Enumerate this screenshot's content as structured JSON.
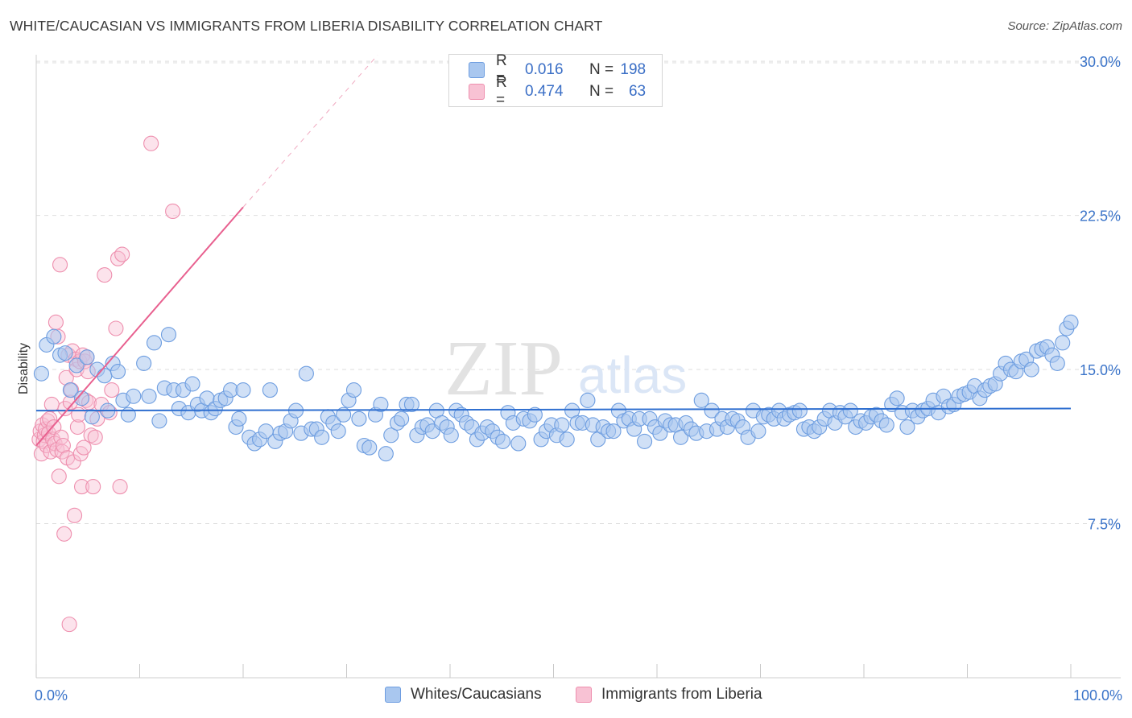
{
  "header": {
    "title": "WHITE/CAUCASIAN VS IMMIGRANTS FROM LIBERIA DISABILITY CORRELATION CHART",
    "source": "Source: ZipAtlas.com"
  },
  "watermark": {
    "zip": "ZIP",
    "atlas": "atlas"
  },
  "legend": {
    "rows": [
      {
        "r_label": "R =",
        "r_value": "0.016",
        "n_label": "N =",
        "n_value": "198"
      },
      {
        "r_label": "R =",
        "r_value": "0.474",
        "n_label": "N =",
        "n_value": "63"
      }
    ]
  },
  "bottom_legend": {
    "blue_label": "Whites/Caucasians",
    "pink_label": "Immigrants from Liberia"
  },
  "colors": {
    "blue_fill": "#a9c7ef",
    "blue_stroke": "#6d9de0",
    "blue_line": "#2f6fd0",
    "pink_fill": "#f8c2d4",
    "pink_stroke": "#ee8fae",
    "pink_line": "#e8608f",
    "axis_text": "#3b74c9",
    "grid": "#dedede"
  },
  "chart_data": {
    "type": "scatter",
    "title": "WHITE/CAUCASIAN VS IMMIGRANTS FROM LIBERIA DISABILITY CORRELATION CHART",
    "xlabel": "",
    "ylabel": "Disability",
    "xlim": [
      0,
      100
    ],
    "ylim": [
      0,
      31
    ],
    "x_tick_labels": [
      "0.0%",
      "100.0%"
    ],
    "y_ticks": [
      7.5,
      15.0,
      22.5,
      30.0
    ],
    "y_tick_labels": [
      "7.5%",
      "15.0%",
      "22.5%",
      "30.0%"
    ],
    "grid": true,
    "series": [
      {
        "name": "Whites/Caucasians",
        "R": 0.016,
        "N": 198,
        "trend": {
          "x": [
            0,
            100
          ],
          "y": [
            13.0,
            13.1
          ],
          "style": "solid"
        },
        "points": [
          [
            0.5,
            14.8
          ],
          [
            1.0,
            16.2
          ],
          [
            1.7,
            16.6
          ],
          [
            2.3,
            15.7
          ],
          [
            2.8,
            15.8
          ],
          [
            3.3,
            14.0
          ],
          [
            3.9,
            15.2
          ],
          [
            4.4,
            13.6
          ],
          [
            4.9,
            15.6
          ],
          [
            5.4,
            12.7
          ],
          [
            5.9,
            15.0
          ],
          [
            6.6,
            14.7
          ],
          [
            6.9,
            13.0
          ],
          [
            7.4,
            15.3
          ],
          [
            7.9,
            14.9
          ],
          [
            8.4,
            13.5
          ],
          [
            8.9,
            12.8
          ],
          [
            9.4,
            13.7
          ],
          [
            10.4,
            15.3
          ],
          [
            10.9,
            13.7
          ],
          [
            11.4,
            16.3
          ],
          [
            11.9,
            12.5
          ],
          [
            12.4,
            14.1
          ],
          [
            12.8,
            16.7
          ],
          [
            13.3,
            14.0
          ],
          [
            13.8,
            13.1
          ],
          [
            14.2,
            14.0
          ],
          [
            14.7,
            12.9
          ],
          [
            15.1,
            14.3
          ],
          [
            15.6,
            13.3
          ],
          [
            16.0,
            13.0
          ],
          [
            16.5,
            13.6
          ],
          [
            16.9,
            12.9
          ],
          [
            17.3,
            13.1
          ],
          [
            17.8,
            13.5
          ],
          [
            18.3,
            13.6
          ],
          [
            18.8,
            14.0
          ],
          [
            19.3,
            12.2
          ],
          [
            19.6,
            12.6
          ],
          [
            20.0,
            14.0
          ],
          [
            20.6,
            11.7
          ],
          [
            21.1,
            11.4
          ],
          [
            21.6,
            11.6
          ],
          [
            22.2,
            12.0
          ],
          [
            22.6,
            14.0
          ],
          [
            23.1,
            11.5
          ],
          [
            23.6,
            11.9
          ],
          [
            24.1,
            12.0
          ],
          [
            24.6,
            12.5
          ],
          [
            25.1,
            13.0
          ],
          [
            25.6,
            11.9
          ],
          [
            26.1,
            14.8
          ],
          [
            26.6,
            12.1
          ],
          [
            27.1,
            12.1
          ],
          [
            27.6,
            11.7
          ],
          [
            28.2,
            12.7
          ],
          [
            28.7,
            12.4
          ],
          [
            29.2,
            12.0
          ],
          [
            29.7,
            12.8
          ],
          [
            30.2,
            13.5
          ],
          [
            30.7,
            14.0
          ],
          [
            31.2,
            12.6
          ],
          [
            31.7,
            11.3
          ],
          [
            32.2,
            11.2
          ],
          [
            32.8,
            12.8
          ],
          [
            33.3,
            13.3
          ],
          [
            33.8,
            10.9
          ],
          [
            34.3,
            11.8
          ],
          [
            34.9,
            12.4
          ],
          [
            35.3,
            12.6
          ],
          [
            35.8,
            13.3
          ],
          [
            36.3,
            13.3
          ],
          [
            36.8,
            11.8
          ],
          [
            37.3,
            12.2
          ],
          [
            37.8,
            12.3
          ],
          [
            38.3,
            12.0
          ],
          [
            38.7,
            13.0
          ],
          [
            39.2,
            12.4
          ],
          [
            39.7,
            12.2
          ],
          [
            40.1,
            11.8
          ],
          [
            40.6,
            13.0
          ],
          [
            41.1,
            12.8
          ],
          [
            41.6,
            12.4
          ],
          [
            42.1,
            12.2
          ],
          [
            42.6,
            11.6
          ],
          [
            43.1,
            11.9
          ],
          [
            43.6,
            12.2
          ],
          [
            44.1,
            12.0
          ],
          [
            44.6,
            11.7
          ],
          [
            45.1,
            11.5
          ],
          [
            45.6,
            12.9
          ],
          [
            46.1,
            12.4
          ],
          [
            46.6,
            11.4
          ],
          [
            47.1,
            12.6
          ],
          [
            47.7,
            12.5
          ],
          [
            48.2,
            12.8
          ],
          [
            48.8,
            11.6
          ],
          [
            49.3,
            12.0
          ],
          [
            49.8,
            12.3
          ],
          [
            50.3,
            11.8
          ],
          [
            50.8,
            12.3
          ],
          [
            51.3,
            11.6
          ],
          [
            51.8,
            13.0
          ],
          [
            52.3,
            12.4
          ],
          [
            52.8,
            12.4
          ],
          [
            53.3,
            13.5
          ],
          [
            53.8,
            12.3
          ],
          [
            54.3,
            11.6
          ],
          [
            54.8,
            12.2
          ],
          [
            55.3,
            12.0
          ],
          [
            55.8,
            12.0
          ],
          [
            56.3,
            13.0
          ],
          [
            56.8,
            12.5
          ],
          [
            57.3,
            12.6
          ],
          [
            57.8,
            12.1
          ],
          [
            58.3,
            12.6
          ],
          [
            58.8,
            11.5
          ],
          [
            59.3,
            12.6
          ],
          [
            59.8,
            12.2
          ],
          [
            60.3,
            11.9
          ],
          [
            60.8,
            12.5
          ],
          [
            61.3,
            12.3
          ],
          [
            61.8,
            12.3
          ],
          [
            62.3,
            11.7
          ],
          [
            62.8,
            12.4
          ],
          [
            63.3,
            12.1
          ],
          [
            63.8,
            11.9
          ],
          [
            64.3,
            13.5
          ],
          [
            64.8,
            12.0
          ],
          [
            65.3,
            13.0
          ],
          [
            65.8,
            12.1
          ],
          [
            66.3,
            12.6
          ],
          [
            66.8,
            12.2
          ],
          [
            67.3,
            12.6
          ],
          [
            67.8,
            12.5
          ],
          [
            68.3,
            12.2
          ],
          [
            68.8,
            11.7
          ],
          [
            69.3,
            13.0
          ],
          [
            69.8,
            12.0
          ],
          [
            70.3,
            12.7
          ],
          [
            70.8,
            12.8
          ],
          [
            71.3,
            12.6
          ],
          [
            71.8,
            13.0
          ],
          [
            72.3,
            12.6
          ],
          [
            72.8,
            12.8
          ],
          [
            73.3,
            12.9
          ],
          [
            73.8,
            13.0
          ],
          [
            74.2,
            12.1
          ],
          [
            74.7,
            12.2
          ],
          [
            75.2,
            12.0
          ],
          [
            75.7,
            12.2
          ],
          [
            76.2,
            12.6
          ],
          [
            76.7,
            13.0
          ],
          [
            77.2,
            12.4
          ],
          [
            77.7,
            12.9
          ],
          [
            78.2,
            12.7
          ],
          [
            78.7,
            13.0
          ],
          [
            79.2,
            12.2
          ],
          [
            79.7,
            12.5
          ],
          [
            80.2,
            12.4
          ],
          [
            80.7,
            12.7
          ],
          [
            81.2,
            12.8
          ],
          [
            81.7,
            12.5
          ],
          [
            82.2,
            12.3
          ],
          [
            82.7,
            13.3
          ],
          [
            83.2,
            13.6
          ],
          [
            83.7,
            12.9
          ],
          [
            84.2,
            12.2
          ],
          [
            84.7,
            13.0
          ],
          [
            85.2,
            12.7
          ],
          [
            85.7,
            13.0
          ],
          [
            86.2,
            13.1
          ],
          [
            86.7,
            13.5
          ],
          [
            87.2,
            12.9
          ],
          [
            87.7,
            13.7
          ],
          [
            88.2,
            13.2
          ],
          [
            88.7,
            13.3
          ],
          [
            89.2,
            13.7
          ],
          [
            89.7,
            13.8
          ],
          [
            90.2,
            13.9
          ],
          [
            90.7,
            14.2
          ],
          [
            91.2,
            13.6
          ],
          [
            91.7,
            14.0
          ],
          [
            92.2,
            14.2
          ],
          [
            92.7,
            14.3
          ],
          [
            93.2,
            14.8
          ],
          [
            93.7,
            15.3
          ],
          [
            94.2,
            15.0
          ],
          [
            94.7,
            14.9
          ],
          [
            95.2,
            15.4
          ],
          [
            95.7,
            15.5
          ],
          [
            96.2,
            15.0
          ],
          [
            96.7,
            15.9
          ],
          [
            97.2,
            16.0
          ],
          [
            97.7,
            16.1
          ],
          [
            98.2,
            15.7
          ],
          [
            98.7,
            15.3
          ],
          [
            99.2,
            16.3
          ],
          [
            99.6,
            17.0
          ],
          [
            100.0,
            17.3
          ]
        ]
      },
      {
        "name": "Immigrants from Liberia",
        "R": 0.474,
        "N": 63,
        "trend": {
          "x": [
            0,
            20,
            33
          ],
          "y": [
            11.3,
            22.9,
            30.3
          ],
          "solid_until_x": 20,
          "style": "solid then dashed"
        },
        "points": [
          [
            0.3,
            11.6
          ],
          [
            0.4,
            12.0
          ],
          [
            0.5,
            10.9
          ],
          [
            0.6,
            12.3
          ],
          [
            0.7,
            11.5
          ],
          [
            0.8,
            11.8
          ],
          [
            0.9,
            12.1
          ],
          [
            1.0,
            11.3
          ],
          [
            1.1,
            12.5
          ],
          [
            1.2,
            11.9
          ],
          [
            1.3,
            12.6
          ],
          [
            1.4,
            11.0
          ],
          [
            1.5,
            13.3
          ],
          [
            1.6,
            11.6
          ],
          [
            1.7,
            12.2
          ],
          [
            1.8,
            11.4
          ],
          [
            1.9,
            17.3
          ],
          [
            2.0,
            11.1
          ],
          [
            2.1,
            16.6
          ],
          [
            2.2,
            9.8
          ],
          [
            2.3,
            20.1
          ],
          [
            2.4,
            11.7
          ],
          [
            2.5,
            11.0
          ],
          [
            2.6,
            11.3
          ],
          [
            2.7,
            7.0
          ],
          [
            2.8,
            13.1
          ],
          [
            2.9,
            14.6
          ],
          [
            3.0,
            10.7
          ],
          [
            3.1,
            15.7
          ],
          [
            3.2,
            2.6
          ],
          [
            3.3,
            13.4
          ],
          [
            3.4,
            14.0
          ],
          [
            3.5,
            15.9
          ],
          [
            3.6,
            10.5
          ],
          [
            3.7,
            7.9
          ],
          [
            3.8,
            15.5
          ],
          [
            3.9,
            15.0
          ],
          [
            4.0,
            12.2
          ],
          [
            4.1,
            12.8
          ],
          [
            4.2,
            15.4
          ],
          [
            4.3,
            10.9
          ],
          [
            4.4,
            9.3
          ],
          [
            4.5,
            15.7
          ],
          [
            4.6,
            11.2
          ],
          [
            4.7,
            15.4
          ],
          [
            4.8,
            13.5
          ],
          [
            4.9,
            15.6
          ],
          [
            5.0,
            14.9
          ],
          [
            5.1,
            13.4
          ],
          [
            5.3,
            11.8
          ],
          [
            5.5,
            9.3
          ],
          [
            5.7,
            11.7
          ],
          [
            5.9,
            12.6
          ],
          [
            6.3,
            13.3
          ],
          [
            6.6,
            19.6
          ],
          [
            7.1,
            12.9
          ],
          [
            7.3,
            14.0
          ],
          [
            7.7,
            17.0
          ],
          [
            7.9,
            20.4
          ],
          [
            8.1,
            9.3
          ],
          [
            8.3,
            20.6
          ],
          [
            11.1,
            26.0
          ],
          [
            13.2,
            22.7
          ]
        ]
      }
    ]
  }
}
